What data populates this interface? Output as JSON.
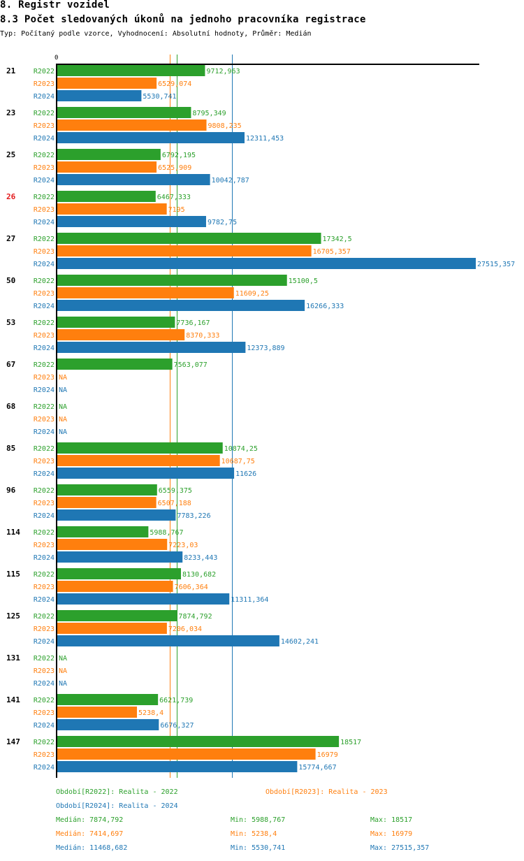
{
  "header": {
    "section": "8. Registr vozidel",
    "title": "8.3 Počet sledovaných úkonů na jednoho pracovníka registrace",
    "subtitle": "Typ: Počítaný podle vzorce, Vyhodnocení: Absolutní hodnoty, Průměr: Medián"
  },
  "colors": {
    "R2022": "#2ca02c",
    "R2023": "#ff7f0e",
    "R2024": "#1f77b4",
    "highlight": "#e31a1c",
    "axis": "#000000"
  },
  "chart_data": {
    "type": "bar",
    "orientation": "horizontal",
    "title": "8.3 Počet sledovaných úkonů na jednoho pracovníka registrace",
    "xlabel": "",
    "ylabel": "",
    "x_tick_labels": [
      "0"
    ],
    "xlim": [
      0,
      27515.357
    ],
    "grid": false,
    "categories": [
      "21",
      "23",
      "25",
      "26",
      "27",
      "50",
      "53",
      "67",
      "68",
      "85",
      "96",
      "114",
      "115",
      "125",
      "131",
      "141",
      "147"
    ],
    "highlighted_categories": [
      "26"
    ],
    "series": [
      {
        "name": "R2022",
        "values": [
          9712.963,
          8795.349,
          6792.195,
          6467.333,
          17342.5,
          15100.5,
          7736.167,
          7563.077,
          null,
          10874.25,
          6559.375,
          5988.767,
          8130.682,
          7874.792,
          null,
          6621.739,
          18517
        ],
        "labels": [
          "9712,963",
          "8795,349",
          "6792,195",
          "6467,333",
          "17342,5",
          "15100,5",
          "7736,167",
          "7563,077",
          "NA",
          "10874,25",
          "6559,375",
          "5988,767",
          "8130,682",
          "7874,792",
          "NA",
          "6621,739",
          "18517"
        ]
      },
      {
        "name": "R2023",
        "values": [
          6529.074,
          9808.235,
          6525.909,
          7195,
          16705.357,
          11609.25,
          8370.333,
          null,
          null,
          10687.75,
          6507.188,
          7223.03,
          7606.364,
          7206.034,
          null,
          5238.4,
          16979
        ],
        "labels": [
          "6529,074",
          "9808,235",
          "6525,909",
          "7195",
          "16705,357",
          "11609,25",
          "8370,333",
          "NA",
          "NA",
          "10687,75",
          "6507,188",
          "7223,03",
          "7606,364",
          "7206,034",
          "NA",
          "5238,4",
          "16979"
        ]
      },
      {
        "name": "R2024",
        "values": [
          5530.741,
          12311.453,
          10042.787,
          9782.75,
          27515.357,
          16266.333,
          12373.889,
          null,
          null,
          11626,
          7783.226,
          8233.443,
          11311.364,
          14602.241,
          null,
          6676.327,
          15774.667
        ],
        "labels": [
          "5530,741",
          "12311,453",
          "10042,787",
          "9782,75",
          "27515,357",
          "16266,333",
          "12373,889",
          "NA",
          "NA",
          "11626",
          "7783,226",
          "8233,443",
          "11311,364",
          "14602,241",
          "NA",
          "6676,327",
          "15774,667"
        ]
      }
    ],
    "reference_lines": [
      {
        "series": "R2022",
        "type": "median",
        "value": 7874.792
      },
      {
        "series": "R2023",
        "type": "median",
        "value": 7414.697
      },
      {
        "series": "R2024",
        "type": "median",
        "value": 11468.682
      }
    ],
    "legend": {
      "placement": "bottom",
      "periods": [
        {
          "series": "R2022",
          "text": "Období[R2022]: Realita - 2022"
        },
        {
          "series": "R2023",
          "text": "Období[R2023]: Realita - 2023"
        },
        {
          "series": "R2024",
          "text": "Období[R2024]: Realita - 2024"
        }
      ],
      "stats": [
        {
          "series": "R2022",
          "median": "Medián: 7874,792",
          "min": "Min: 5988,767",
          "max": "Max: 18517"
        },
        {
          "series": "R2023",
          "median": "Medián: 7414,697",
          "min": "Min: 5238,4",
          "max": "Max: 16979"
        },
        {
          "series": "R2024",
          "median": "Medián: 11468,682",
          "min": "Min: 5530,741",
          "max": "Max: 27515,357"
        }
      ]
    }
  }
}
